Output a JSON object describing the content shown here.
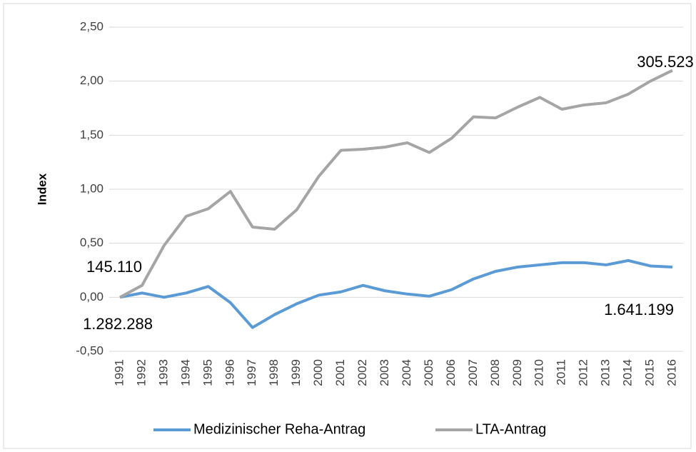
{
  "chart_data": {
    "type": "line",
    "y_label": "Index",
    "categories": [
      "1991",
      "1992",
      "1993",
      "1994",
      "1995",
      "1996",
      "1997",
      "1998",
      "1999",
      "2000",
      "2001",
      "2002",
      "2003",
      "2004",
      "2005",
      "2006",
      "2007",
      "2008",
      "2009",
      "2010",
      "2011",
      "2012",
      "2013",
      "2014",
      "2015",
      "2016"
    ],
    "series": [
      {
        "name": "Medizinischer Reha-Antrag",
        "color": "#5b9bd5",
        "values": [
          0,
          0.04,
          0.0,
          0.04,
          0.1,
          -0.05,
          -0.28,
          -0.16,
          -0.06,
          0.02,
          0.05,
          0.11,
          0.06,
          0.03,
          0.01,
          0.07,
          0.17,
          0.24,
          0.28,
          0.3,
          0.32,
          0.32,
          0.3,
          0.34,
          0.29,
          0.28
        ]
      },
      {
        "name": "LTA-Antrag",
        "color": "#a5a5a5",
        "values": [
          0,
          0.11,
          0.48,
          0.75,
          0.82,
          0.98,
          0.65,
          0.63,
          0.81,
          1.12,
          1.36,
          1.37,
          1.39,
          1.43,
          1.34,
          1.47,
          1.67,
          1.66,
          1.76,
          1.85,
          1.74,
          1.78,
          1.8,
          1.88,
          2.0,
          2.1
        ]
      }
    ],
    "ylim": [
      -0.5,
      2.5
    ],
    "yticks": [
      {
        "value": -0.5,
        "label": "-0,50"
      },
      {
        "value": 0,
        "label": "0,00"
      },
      {
        "value": 0.5,
        "label": "0,50"
      },
      {
        "value": 1,
        "label": "1,00"
      },
      {
        "value": 1.5,
        "label": "1,50"
      },
      {
        "value": 2,
        "label": "2,00"
      },
      {
        "value": 2.5,
        "label": "2,50"
      }
    ],
    "grid": true,
    "legend": "bottom",
    "annotations": [
      "305.523",
      "145.110",
      "1.282.288",
      "1.641.199"
    ]
  }
}
